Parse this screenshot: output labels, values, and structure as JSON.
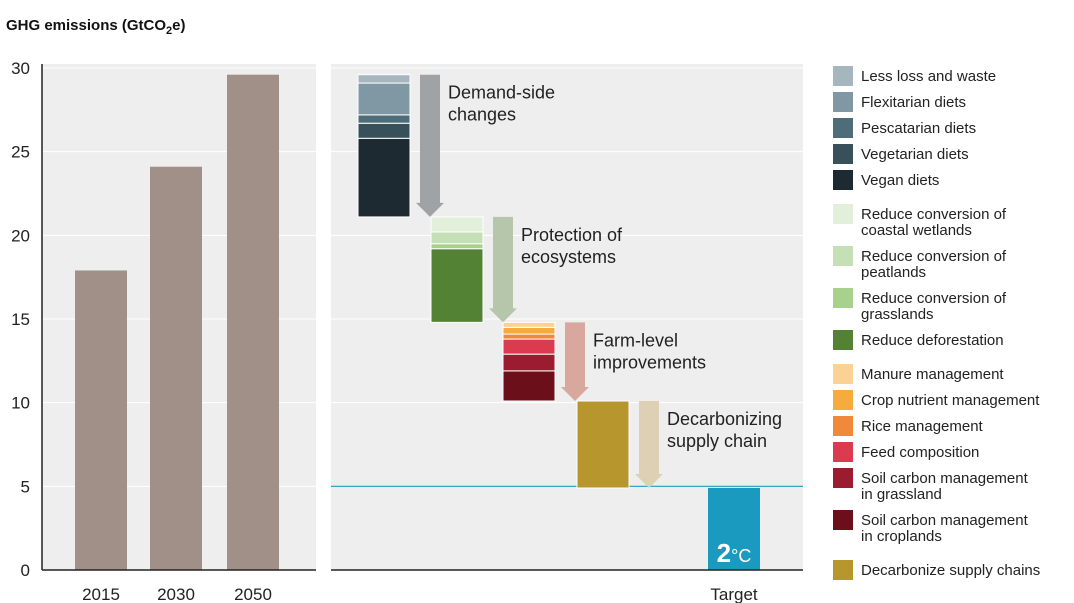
{
  "chart_data": {
    "type": "bar",
    "ylabel_prefix": "GHG emissions (GtCO",
    "ylabel_sub": "2",
    "ylabel_suffix": "e)",
    "ylim": [
      0,
      30
    ],
    "yticks": [
      0,
      5,
      10,
      15,
      20,
      25,
      30
    ],
    "target_line": 5,
    "baseline": {
      "categories": [
        "2015",
        "2030",
        "2050"
      ],
      "values": [
        17.9,
        24.1,
        29.6
      ],
      "color": "#a09088"
    },
    "waterfall": [
      {
        "label_lines": [
          "Demand-side",
          "changes"
        ],
        "arrow_color": "#9fa3a6",
        "segments": [
          {
            "name": "Vegan diets",
            "from": 21.1,
            "to": 25.8,
            "color": "#1e2a32"
          },
          {
            "name": "Vegetarian diets",
            "from": 25.8,
            "to": 26.7,
            "color": "#37505a"
          },
          {
            "name": "Pescatarian diets",
            "from": 26.7,
            "to": 27.2,
            "color": "#4f6d79"
          },
          {
            "name": "Flexitarian diets",
            "from": 27.2,
            "to": 29.1,
            "color": "#7f98a4"
          },
          {
            "name": "Less loss and waste",
            "from": 29.1,
            "to": 29.6,
            "color": "#a6b6bf"
          }
        ]
      },
      {
        "label_lines": [
          "Protection of",
          "ecosystems"
        ],
        "arrow_color": "#b5c6aa",
        "segments": [
          {
            "name": "Reduce deforestation",
            "from": 14.8,
            "to": 19.2,
            "color": "#548235"
          },
          {
            "name": "Reduce conversion of grasslands",
            "from": 19.2,
            "to": 19.5,
            "color": "#a9d18e"
          },
          {
            "name": "Reduce conversion of peatlands",
            "from": 19.5,
            "to": 20.2,
            "color": "#c5e0b4"
          },
          {
            "name": "Reduce conversion of coastal wetlands",
            "from": 20.2,
            "to": 21.1,
            "color": "#e2efda"
          }
        ]
      },
      {
        "label_lines": [
          "Farm-level",
          "improvements"
        ],
        "arrow_color": "#d8a89e",
        "segments": [
          {
            "name": "Soil carbon management in croplands",
            "from": 10.1,
            "to": 11.9,
            "color": "#6b0f1a"
          },
          {
            "name": "Soil carbon management in grassland",
            "from": 11.9,
            "to": 12.9,
            "color": "#9b1b30"
          },
          {
            "name": "Feed composition",
            "from": 12.9,
            "to": 13.8,
            "color": "#dc3a4f"
          },
          {
            "name": "Rice management",
            "from": 13.8,
            "to": 14.1,
            "color": "#f08a3a"
          },
          {
            "name": "Crop nutrient management",
            "from": 14.1,
            "to": 14.5,
            "color": "#f6ac3c"
          },
          {
            "name": "Manure management",
            "from": 14.5,
            "to": 14.8,
            "color": "#fbd196"
          }
        ]
      },
      {
        "label_lines": [
          "Decarbonizing",
          "supply chain"
        ],
        "arrow_color": "#ddd0b4",
        "segments": [
          {
            "name": "Decarbonize supply chains",
            "from": 4.9,
            "to": 10.1,
            "color": "#b8962e"
          }
        ]
      }
    ],
    "target": {
      "category": "Target",
      "value": 4.9,
      "color": "#1b9ac0",
      "label_big": "2",
      "label_small": "°C"
    },
    "legend_groups": [
      [
        {
          "label": [
            "Less loss and waste"
          ],
          "color": "#a6b6bf"
        },
        {
          "label": [
            "Flexitarian diets"
          ],
          "color": "#7f98a4"
        },
        {
          "label": [
            "Pescatarian diets"
          ],
          "color": "#4f6d79"
        },
        {
          "label": [
            "Vegetarian diets"
          ],
          "color": "#37505a"
        },
        {
          "label": [
            "Vegan diets"
          ],
          "color": "#1e2a32"
        }
      ],
      [
        {
          "label": [
            "Reduce conversion of",
            "coastal wetlands"
          ],
          "color": "#e2efda"
        },
        {
          "label": [
            "Reduce conversion of",
            "peatlands"
          ],
          "color": "#c5e0b4"
        },
        {
          "label": [
            "Reduce conversion of",
            "grasslands"
          ],
          "color": "#a9d18e"
        },
        {
          "label": [
            "Reduce deforestation"
          ],
          "color": "#548235"
        }
      ],
      [
        {
          "label": [
            "Manure management"
          ],
          "color": "#fbd196"
        },
        {
          "label": [
            "Crop nutrient management"
          ],
          "color": "#f6ac3c"
        },
        {
          "label": [
            "Rice management"
          ],
          "color": "#f08a3a"
        },
        {
          "label": [
            "Feed composition"
          ],
          "color": "#dc3a4f"
        },
        {
          "label": [
            "Soil carbon management",
            "in grassland"
          ],
          "color": "#9b1b30"
        },
        {
          "label": [
            "Soil carbon management",
            "in croplands"
          ],
          "color": "#6b0f1a"
        }
      ],
      [
        {
          "label": [
            "Decarbonize supply chains"
          ],
          "color": "#b8962e"
        }
      ]
    ]
  }
}
